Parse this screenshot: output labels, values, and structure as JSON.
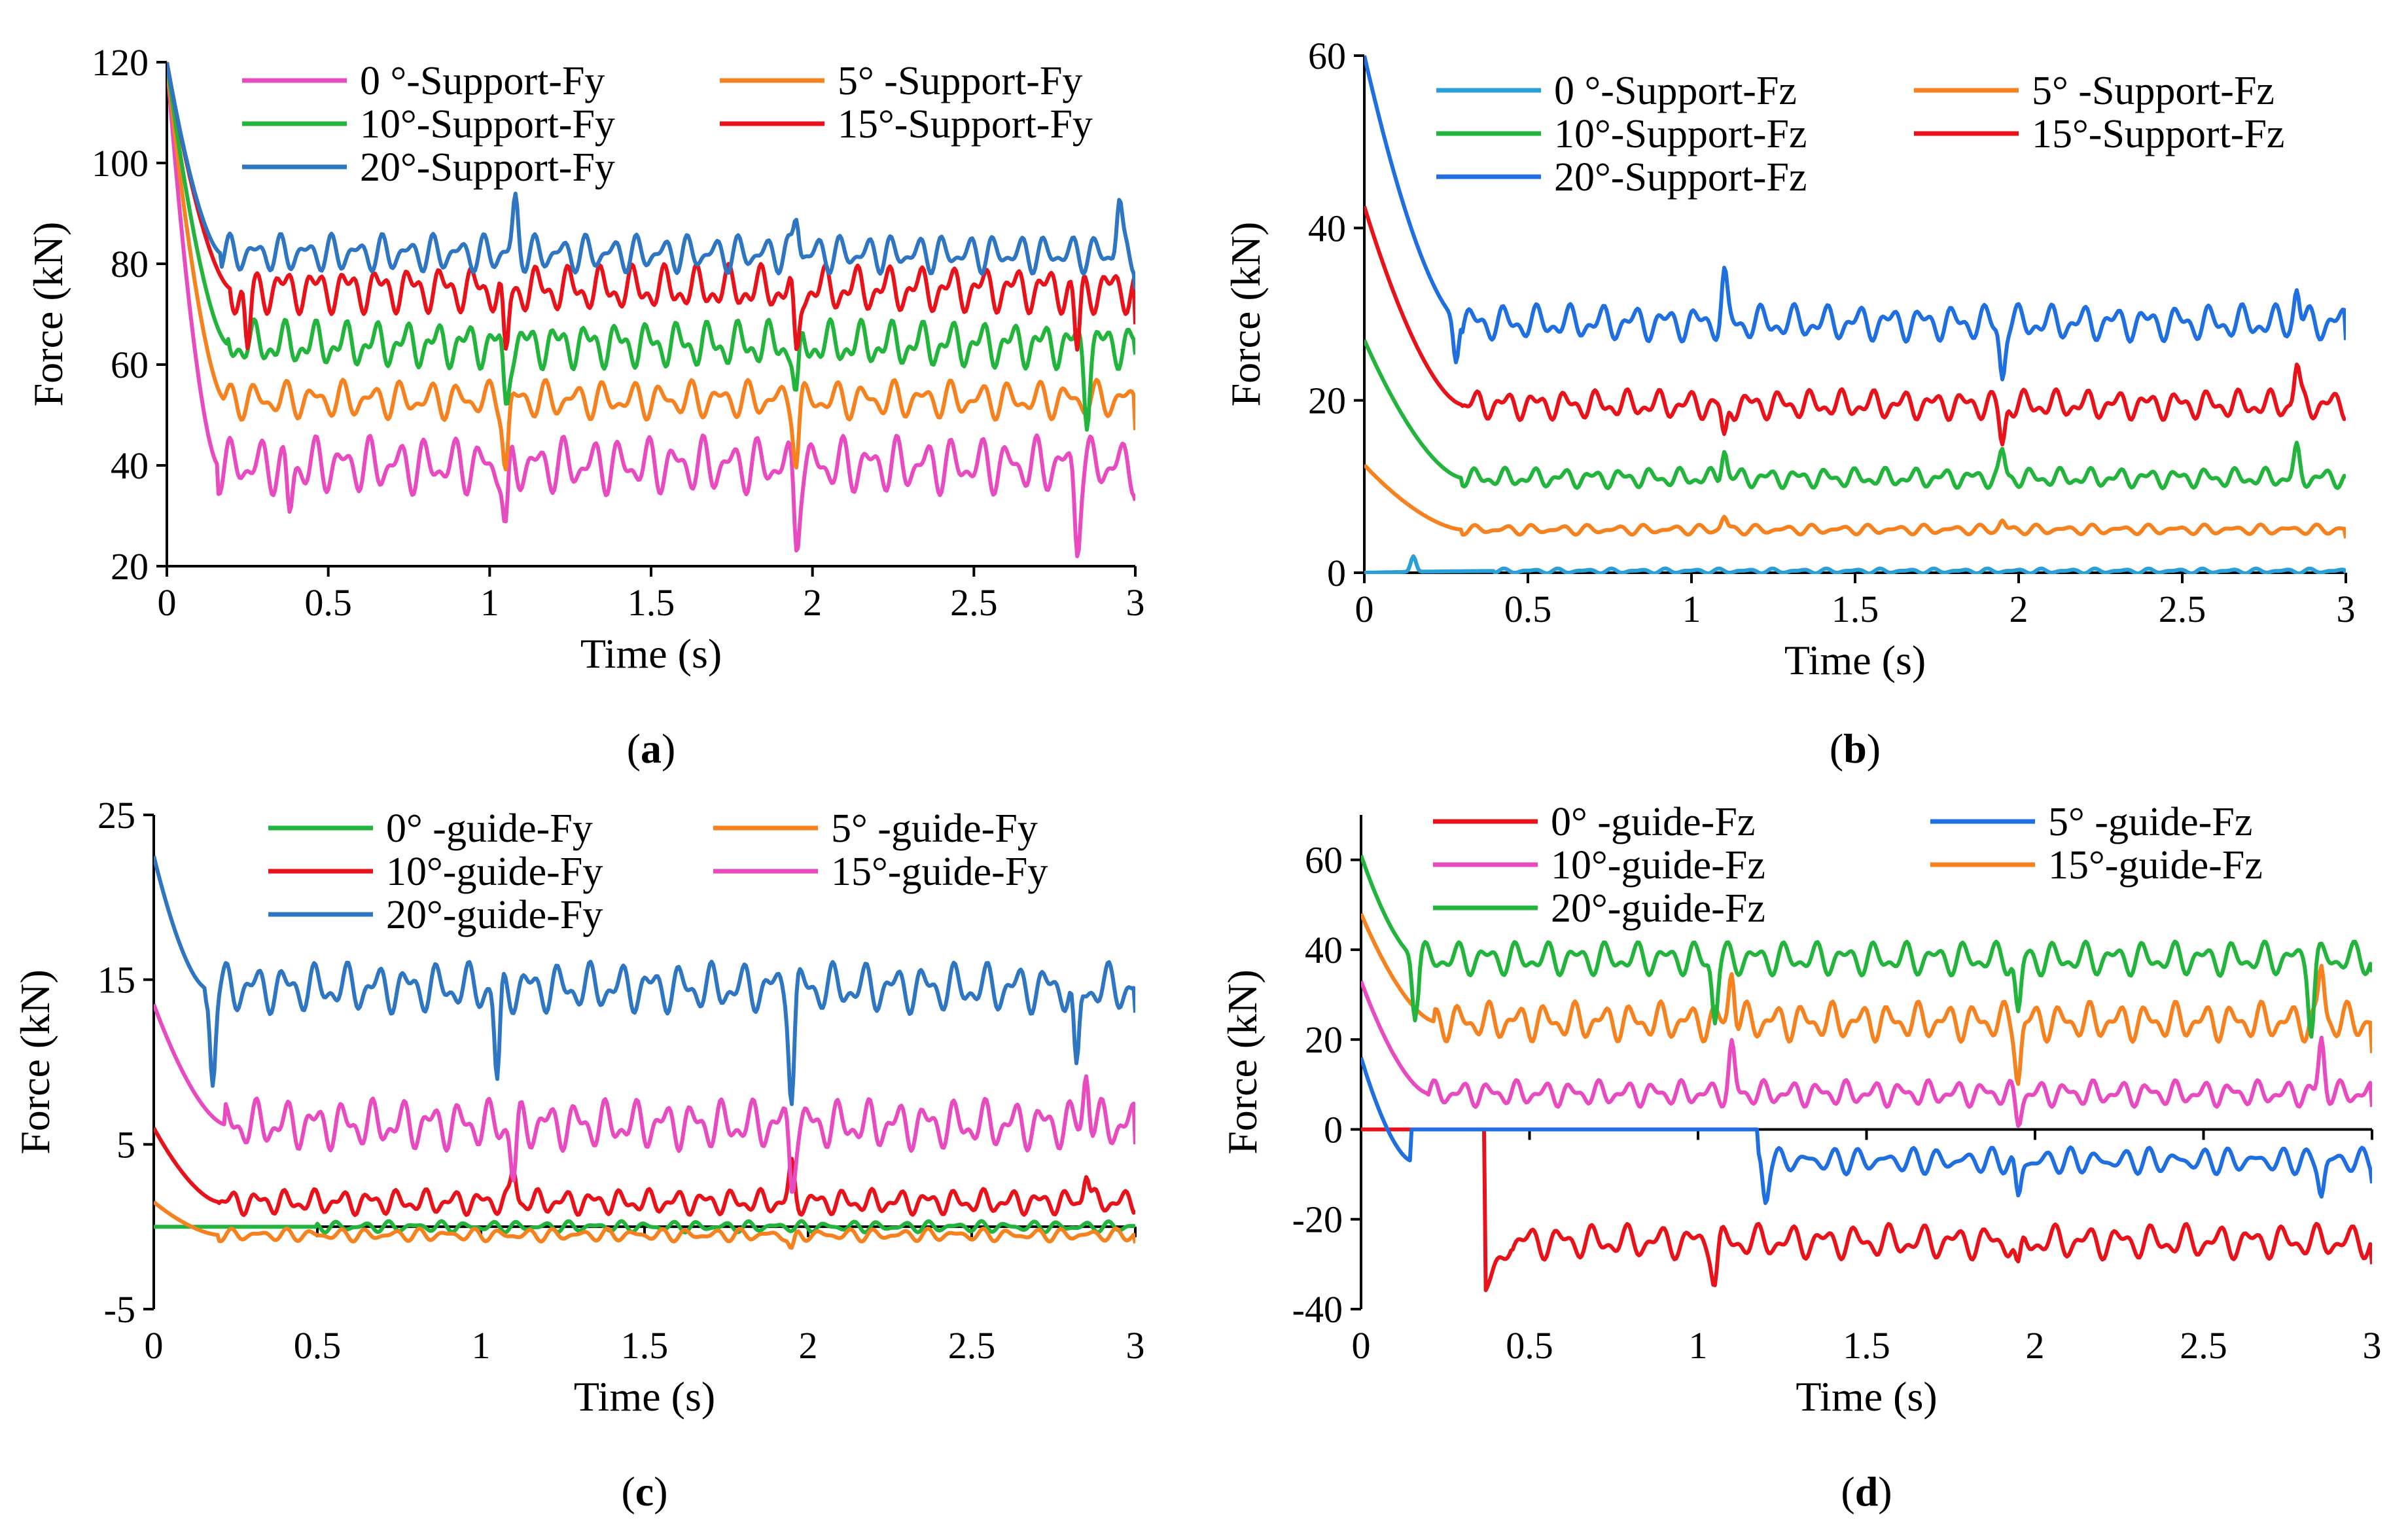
{
  "chart_data": [
    {
      "id": "a",
      "type": "line",
      "panel_label": "(a)",
      "panel_letter": "a",
      "xlabel": "Time (s)",
      "ylabel": "Force (kN)",
      "xlim": [
        0,
        3
      ],
      "ylim": [
        20,
        120
      ],
      "xticks": [
        0,
        0.5,
        1,
        1.5,
        2,
        2.5,
        3
      ],
      "yticks": [
        20,
        40,
        60,
        80,
        100,
        120
      ],
      "series": [
        {
          "name": "0 °-Support-Fy",
          "color": "#e84bbf",
          "start": 120,
          "settle": 0.16,
          "base": 40,
          "amp": 6,
          "spikes": [
            [
              0.38,
              30
            ],
            [
              1.05,
              26
            ],
            [
              1.95,
              26
            ],
            [
              2.82,
              26
            ]
          ],
          "end": 33,
          "seed": 1
        },
        {
          "name": "5° -Support-Fy",
          "color": "#f5821f",
          "start": 120,
          "settle": 0.18,
          "base": 53,
          "amp": 4,
          "spikes": [
            [
              1.05,
              40
            ],
            [
              1.95,
              42
            ]
          ],
          "end": 47,
          "seed": 2
        },
        {
          "name": "10°-Support-Fy",
          "color": "#22b43c",
          "start": 120,
          "settle": 0.19,
          "base": 64,
          "amp": 5,
          "spikes": [
            [
              1.05,
              52
            ],
            [
              1.95,
              52
            ],
            [
              2.85,
              52
            ]
          ],
          "end": 62,
          "seed": 3
        },
        {
          "name": "15°-Support-Fy",
          "color": "#e8121b",
          "start": 120,
          "settle": 0.2,
          "base": 75,
          "amp": 5,
          "spikes": [
            [
              0.25,
              62
            ],
            [
              1.05,
              60
            ],
            [
              1.95,
              60
            ],
            [
              2.82,
              62
            ]
          ],
          "end": 68,
          "seed": 4
        },
        {
          "name": "20°-Support-Fy",
          "color": "#2e75c2",
          "start": 120,
          "settle": 0.17,
          "base": 82,
          "amp": 4,
          "spikes": [
            [
              1.08,
              92
            ],
            [
              1.95,
              90
            ],
            [
              2.95,
              92
            ]
          ],
          "end": 75,
          "seed": 5
        }
      ]
    },
    {
      "id": "b",
      "type": "line",
      "panel_label": "(b)",
      "panel_letter": "b",
      "xlabel": "Time (s)",
      "ylabel": "Force (kN)",
      "xlim": [
        0,
        3
      ],
      "ylim": [
        0,
        60
      ],
      "xticks": [
        0,
        0.5,
        1,
        1.5,
        2,
        2.5,
        3
      ],
      "yticks": [
        0,
        20,
        40,
        60
      ],
      "series": [
        {
          "name": "0 °-Support-Fz",
          "color": "#2a9fd8",
          "start": 0,
          "settle": 0.4,
          "base": 0.2,
          "amp": 0.3,
          "spikes": [
            [
              0.15,
              2
            ]
          ],
          "end": 0,
          "seed": 6
        },
        {
          "name": "5° -Support-Fz",
          "color": "#f5821f",
          "start": 12.5,
          "settle": 0.3,
          "base": 5,
          "amp": 0.6,
          "spikes": [
            [
              1.1,
              6.5
            ],
            [
              1.95,
              6
            ]
          ],
          "end": 4,
          "seed": 7
        },
        {
          "name": "10°-Support-Fz",
          "color": "#22b43c",
          "start": 27,
          "settle": 0.3,
          "base": 11,
          "amp": 1.2,
          "spikes": [
            [
              1.1,
              14.5
            ],
            [
              1.95,
              14
            ],
            [
              2.85,
              14
            ]
          ],
          "end": 11,
          "seed": 8
        },
        {
          "name": "15°-Support-Fz",
          "color": "#e8121b",
          "start": 42.5,
          "settle": 0.3,
          "base": 19.5,
          "amp": 1.8,
          "spikes": [
            [
              1.1,
              15
            ],
            [
              1.95,
              15
            ],
            [
              2.85,
              24
            ]
          ],
          "end": 18,
          "seed": 9
        },
        {
          "name": "20°-Support-Fz",
          "color": "#1f6fe0",
          "start": 60,
          "settle": 0.3,
          "base": 29,
          "amp": 2.2,
          "spikes": [
            [
              0.28,
              24
            ],
            [
              1.1,
              34
            ],
            [
              1.95,
              23
            ],
            [
              2.85,
              33
            ]
          ],
          "end": 27,
          "seed": 10
        }
      ]
    },
    {
      "id": "c",
      "type": "line",
      "panel_label": "(c)",
      "panel_letter": "c",
      "xlabel": "Time (s)",
      "ylabel": "Force (kN)",
      "xlim": [
        0,
        3
      ],
      "ylim": [
        -5,
        25
      ],
      "xticks": [
        0,
        0.5,
        1,
        1.5,
        2,
        2.5,
        3
      ],
      "yticks": [
        -5,
        5,
        15,
        25
      ],
      "series": [
        {
          "name": "0° -guide-Fy",
          "color": "#22b43c",
          "start": 0,
          "settle": 0.5,
          "base": 0,
          "amp": 0.35,
          "spikes": [],
          "end": 0,
          "seed": 11
        },
        {
          "name": "5° -guide-Fy",
          "color": "#f5821f",
          "start": 1.5,
          "settle": 0.2,
          "base": -0.5,
          "amp": 0.4,
          "spikes": [
            [
              1.95,
              -1.5
            ]
          ],
          "end": -1,
          "seed": 12
        },
        {
          "name": "10°-guide-Fy",
          "color": "#e8121b",
          "start": 6,
          "settle": 0.2,
          "base": 1.5,
          "amp": 0.8,
          "spikes": [
            [
              1.1,
              3.5
            ],
            [
              1.95,
              3.5
            ],
            [
              2.85,
              3.5
            ]
          ],
          "end": 1,
          "seed": 13
        },
        {
          "name": "15°-guide-Fy",
          "color": "#e84bbf",
          "start": 13.5,
          "settle": 0.22,
          "base": 6.2,
          "amp": 1.6,
          "spikes": [
            [
              1.1,
              3
            ],
            [
              1.95,
              3
            ],
            [
              2.85,
              9.5
            ]
          ],
          "end": 5,
          "seed": 14
        },
        {
          "name": "20°-guide-Fy",
          "color": "#2e75c2",
          "start": 22.5,
          "settle": 0.16,
          "base": 14.5,
          "amp": 1.6,
          "spikes": [
            [
              0.18,
              9
            ],
            [
              1.05,
              8.5
            ],
            [
              1.95,
              8.5
            ],
            [
              2.82,
              8.5
            ]
          ],
          "end": 13,
          "seed": 15
        }
      ]
    },
    {
      "id": "d",
      "type": "line",
      "panel_label": "(d)",
      "panel_letter": "d",
      "xlabel": "Time (s)",
      "ylabel": "Force (kN)",
      "xlim": [
        0,
        3
      ],
      "ylim": [
        -40,
        70
      ],
      "xticks": [
        0,
        0.5,
        1,
        1.5,
        2,
        2.5,
        3
      ],
      "yticks": [
        -40,
        -20,
        0,
        20,
        40,
        60
      ],
      "series": [
        {
          "name": "0° -guide-Fz",
          "color": "#e8121b",
          "start": 0,
          "hold_until": 0.37,
          "drop_to": -35,
          "settle": 0.45,
          "base": -25,
          "amp": 4,
          "spikes": [
            [
              1.05,
              -33
            ],
            [
              1.95,
              -33
            ]
          ],
          "end": -30,
          "seed": 16
        },
        {
          "name": "5° -guide-Fz",
          "color": "#1f6fe0",
          "start": 16,
          "settle": 0.15,
          "flat_until": 1.18,
          "base": -7,
          "amp": 3,
          "spikes": [
            [
              1.2,
              -14
            ],
            [
              1.95,
              -16
            ],
            [
              2.85,
              -14
            ]
          ],
          "end": -12,
          "seed": 17
        },
        {
          "name": "10°-guide-Fz",
          "color": "#e84bbf",
          "start": 33,
          "settle": 0.2,
          "base": 8,
          "amp": 3,
          "spikes": [
            [
              1.1,
              18
            ],
            [
              1.95,
              2
            ],
            [
              2.85,
              20
            ]
          ],
          "end": 5,
          "seed": 18
        },
        {
          "name": "15°-guide-Fz",
          "color": "#f5821f",
          "start": 48,
          "settle": 0.22,
          "base": 24,
          "amp": 4.5,
          "spikes": [
            [
              1.1,
              36
            ],
            [
              1.95,
              12
            ],
            [
              2.85,
              36
            ]
          ],
          "end": 17,
          "seed": 19
        },
        {
          "name": "20°-guide-Fz",
          "color": "#22b43c",
          "start": 61,
          "settle": 0.17,
          "base": 38,
          "amp": 4,
          "spikes": [
            [
              0.16,
              24
            ],
            [
              1.05,
              25
            ],
            [
              1.95,
              25
            ],
            [
              2.82,
              24
            ]
          ],
          "end": 35,
          "seed": 20
        }
      ]
    }
  ]
}
